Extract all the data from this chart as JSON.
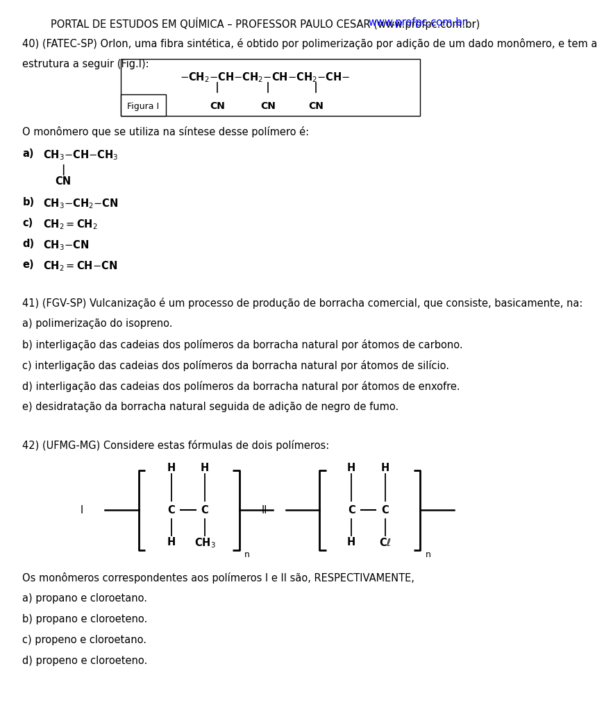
{
  "title_black": "PORTAL DE ESTUDOS EM QUÍMICA – PROFESSOR PAULO CESAR (",
  "title_link": "www.profpc.com.br",
  "title_end": ")",
  "bg_color": "#ffffff",
  "page_width": 9.6,
  "page_height": 12.98,
  "fs": 10.5,
  "q40_text1": "40) (FATEC-SP) Orlon, uma fibra sintética, é obtido por polimerização por adição de um dado monômero, e tem a",
  "q40_text2": "estrutura a seguir (Fig.I):",
  "q40_mono_q": "O monômero que se utiliza na síntese desse polímero é:",
  "q41_intro": "41) (FGV-SP) Vulcanização é um processo de produção de borracha comercial, que consiste, basicamente, na:",
  "q41_a": "a) polimerização do isopreno.",
  "q41_b": "b) interligação das cadeias dos polímeros da borracha natural por átomos de carbono.",
  "q41_c": "c) interligação das cadeias dos polímeros da borracha natural por átomos de silício.",
  "q41_d": "d) interligação das cadeias dos polímeros da borracha natural por átomos de enxofre.",
  "q41_e": "e) desidratação da borracha natural seguida de adição de negro de fumo.",
  "q42_intro": "42) (UFMG-MG) Considere estas fórmulas de dois polímeros:",
  "q42_mono_q": "Os monômeros correspondentes aos polímeros I e II são, RESPECTIVAMENTE,",
  "q42_a": "a) propano e cloroetano.",
  "q42_b": "b) propano e cloroeteno.",
  "q42_c": "c) propeno e cloroetano.",
  "q42_d": "d) propeno e cloroeteno."
}
